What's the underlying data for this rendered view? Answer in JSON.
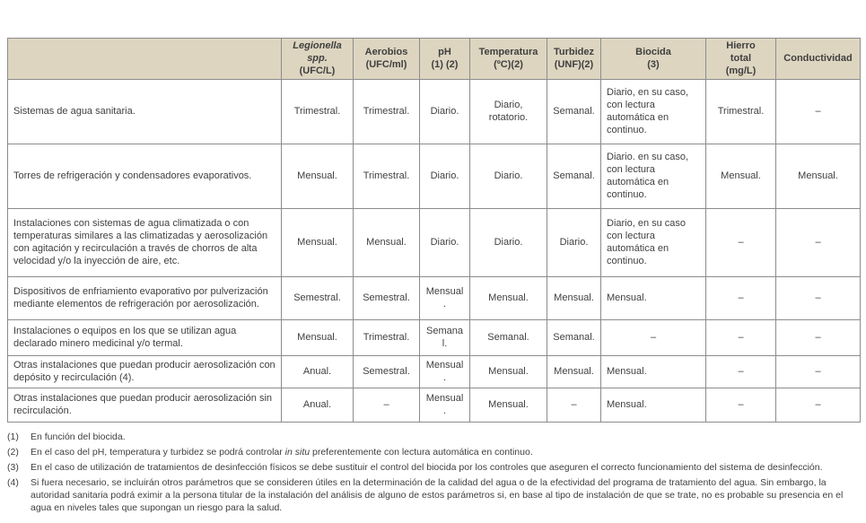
{
  "colors": {
    "header_bg": "#ddd5c0",
    "border": "#8c8c8c",
    "text": "#3f3f3f"
  },
  "table": {
    "columns": [
      {
        "lines": [
          ""
        ]
      },
      {
        "lines": [
          "Legionella",
          "spp.",
          "(UFC/L)"
        ],
        "italic_lines": [
          0,
          1
        ]
      },
      {
        "lines": [
          "Aerobios",
          "(UFC/ml)"
        ]
      },
      {
        "lines": [
          "pH",
          "(1) (2)"
        ]
      },
      {
        "lines": [
          "Temperatura",
          "(ºC)(2)"
        ]
      },
      {
        "lines": [
          "Turbidez",
          "(UNF)(2)"
        ]
      },
      {
        "lines": [
          "Biocida",
          "(3)"
        ]
      },
      {
        "lines": [
          "Hierro",
          "total",
          "(mg/L)"
        ]
      },
      {
        "lines": [
          "Conductividad"
        ]
      }
    ],
    "rows": [
      {
        "label": "Sistemas de agua sanitaria.",
        "cells": [
          "Trimestral.",
          "Trimestral.",
          "Diario.",
          "Diario, rotatorio.",
          "Semanal.",
          "Diario, en su caso, con lectura automática en continuo.",
          "Trimestral.",
          "–"
        ]
      },
      {
        "label": "Torres de refrigeración y condensadores evaporativos.",
        "cells": [
          "Mensual.",
          "Trimestral.",
          "Diario.",
          "Diario.",
          "Semanal.",
          "Diario. en su caso, con lectura automática en continuo.",
          "Mensual.",
          "Mensual."
        ]
      },
      {
        "label": "Instalaciones con sistemas de agua climatizada o con temperaturas similares a las climatizadas y aerosolización con agitación y recirculación a través de chorros de alta velocidad y/o la inyección de aire, etc.",
        "cells": [
          "Mensual.",
          "Mensual.",
          "Diario.",
          "Diario.",
          "Diario.",
          "Diario, en su caso con lectura automática en continuo.",
          "–",
          "–"
        ]
      },
      {
        "label": "Dispositivos de enfriamiento evaporativo por pulverización mediante elementos de refrigeración por aerosolización.",
        "cells": [
          "Semestral.",
          "Semestral.",
          "Mensual.",
          "Mensual.",
          "Mensual.",
          "Mensual.",
          "–",
          "–"
        ]
      },
      {
        "label": "Instalaciones o equipos en los que se utilizan agua declarado minero medicinal y/o termal.",
        "cells": [
          "Mensual.",
          "Trimestral.",
          "Semanal.",
          "Semanal.",
          "Semanal.",
          "–",
          "–",
          "–"
        ]
      },
      {
        "label": "Otras instalaciones que puedan producir aerosolización con depósito y recirculación (4).",
        "cells": [
          "Anual.",
          "Semestral.",
          "Mensual.",
          "Mensual.",
          "Mensual.",
          "Mensual.",
          "–",
          "–"
        ]
      },
      {
        "label": "Otras instalaciones que puedan producir aerosolización sin recirculación.",
        "cells": [
          "Anual.",
          "–",
          "Mensual.",
          "Mensual.",
          "–",
          "Mensual.",
          "–",
          "–"
        ]
      }
    ]
  },
  "footnotes": [
    {
      "marker": "(1)",
      "text": "En función del biocida."
    },
    {
      "marker": "(2)",
      "text": "En el caso del pH, temperatura y turbidez se podrá controlar in situ preferentemente con lectura automática en continuo.",
      "italic": "in situ"
    },
    {
      "marker": "(3)",
      "text": "En el caso de utilización de tratamientos de desinfección físicos se debe sustituir el control del biocida por los controles que aseguren el correcto funcionamiento del sistema de desinfección."
    },
    {
      "marker": "(4)",
      "text": "Si fuera necesario, se incluirán otros parámetros que se consideren útiles en la determinación de la calidad del agua o de la efectividad del programa de tratamiento del agua. Sin embargo, la autoridad sanitaria podrá eximir a la persona titular de la instalación del análisis de alguno de estos parámetros si, en base al tipo de instalación de que se trate, no es probable su presencia en el agua en niveles tales que supongan un riesgo para la salud."
    }
  ]
}
